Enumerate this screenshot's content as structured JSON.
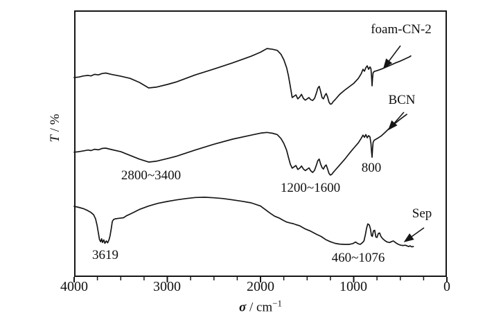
{
  "figure": {
    "background": "#ffffff",
    "line_color": "#161616"
  },
  "chart_data": {
    "type": "line",
    "title": "",
    "xlabel_symbol": "σ",
    "xlabel_unit": " / cm",
    "xlabel_sup": "−1",
    "ylabel_symbol": "T",
    "ylabel_unit": " / %",
    "x_axis": {
      "min": 0,
      "max": 4000,
      "reversed": true,
      "major_ticks": [
        4000,
        3000,
        2000,
        1000,
        0
      ],
      "minor_tick_step": 250,
      "tick_labels": [
        "4000",
        "3000",
        "2000",
        "1000",
        "0"
      ]
    },
    "y_axis": {
      "min": 0,
      "max": 100,
      "tick_labels": []
    },
    "grid": false,
    "legend_position": "none",
    "series": [
      {
        "name": "foam-CN-2",
        "points": [
          [
            4000,
            74.8
          ],
          [
            3950,
            75.0
          ],
          [
            3900,
            75.4
          ],
          [
            3850,
            75.6
          ],
          [
            3820,
            75.4
          ],
          [
            3780,
            76.0
          ],
          [
            3740,
            75.8
          ],
          [
            3700,
            76.3
          ],
          [
            3660,
            76.5
          ],
          [
            3600,
            76.0
          ],
          [
            3500,
            75.3
          ],
          [
            3400,
            74.5
          ],
          [
            3300,
            73.0
          ],
          [
            3200,
            70.9
          ],
          [
            3120,
            71.2
          ],
          [
            3000,
            72.2
          ],
          [
            2900,
            73.2
          ],
          [
            2700,
            75.8
          ],
          [
            2500,
            78.0
          ],
          [
            2300,
            80.3
          ],
          [
            2100,
            82.8
          ],
          [
            2000,
            84.3
          ],
          [
            1930,
            85.7
          ],
          [
            1870,
            85.4
          ],
          [
            1820,
            85.0
          ],
          [
            1780,
            83.5
          ],
          [
            1750,
            81.5
          ],
          [
            1720,
            78.5
          ],
          [
            1700,
            75.5
          ],
          [
            1680,
            71.5
          ],
          [
            1660,
            67.3
          ],
          [
            1640,
            67.8
          ],
          [
            1620,
            68.3
          ],
          [
            1600,
            66.8
          ],
          [
            1580,
            67.5
          ],
          [
            1560,
            68.5
          ],
          [
            1540,
            67.0
          ],
          [
            1520,
            66.3
          ],
          [
            1500,
            66.8
          ],
          [
            1480,
            67.3
          ],
          [
            1460,
            66.5
          ],
          [
            1440,
            66.2
          ],
          [
            1420,
            67.0
          ],
          [
            1400,
            69.0
          ],
          [
            1385,
            70.8
          ],
          [
            1370,
            71.5
          ],
          [
            1355,
            69.5
          ],
          [
            1340,
            67.3
          ],
          [
            1325,
            66.8
          ],
          [
            1310,
            68.0
          ],
          [
            1295,
            68.8
          ],
          [
            1280,
            67.5
          ],
          [
            1265,
            65.5
          ],
          [
            1250,
            64.8
          ],
          [
            1235,
            65.0
          ],
          [
            1220,
            65.8
          ],
          [
            1200,
            66.5
          ],
          [
            1150,
            68.5
          ],
          [
            1100,
            70.0
          ],
          [
            1050,
            71.3
          ],
          [
            1000,
            72.6
          ],
          [
            950,
            74.5
          ],
          [
            920,
            76.2
          ],
          [
            900,
            77.9
          ],
          [
            885,
            77.2
          ],
          [
            870,
            78.5
          ],
          [
            855,
            79.2
          ],
          [
            840,
            77.9
          ],
          [
            825,
            78.8
          ],
          [
            815,
            78.1
          ],
          [
            808,
            75.0
          ],
          [
            803,
            71.7
          ],
          [
            798,
            74.5
          ],
          [
            792,
            76.6
          ],
          [
            780,
            77.1
          ],
          [
            760,
            77.3
          ],
          [
            740,
            77.5
          ],
          [
            700,
            78.0
          ],
          [
            660,
            78.6
          ],
          [
            600,
            79.5
          ],
          [
            550,
            80.3
          ],
          [
            500,
            81.0
          ],
          [
            450,
            81.8
          ],
          [
            400,
            82.6
          ],
          [
            387,
            82.9
          ]
        ]
      },
      {
        "name": "BCN",
        "points": [
          [
            4000,
            46.8
          ],
          [
            3950,
            47.0
          ],
          [
            3900,
            47.3
          ],
          [
            3850,
            47.6
          ],
          [
            3820,
            47.4
          ],
          [
            3780,
            47.9
          ],
          [
            3740,
            47.7
          ],
          [
            3700,
            48.2
          ],
          [
            3660,
            48.3
          ],
          [
            3600,
            47.8
          ],
          [
            3500,
            47.0
          ],
          [
            3400,
            45.6
          ],
          [
            3300,
            44.2
          ],
          [
            3200,
            43.1
          ],
          [
            3120,
            43.4
          ],
          [
            3000,
            44.4
          ],
          [
            2900,
            45.3
          ],
          [
            2700,
            47.6
          ],
          [
            2500,
            49.8
          ],
          [
            2300,
            51.7
          ],
          [
            2100,
            53.2
          ],
          [
            1990,
            54.0
          ],
          [
            1930,
            54.2
          ],
          [
            1870,
            53.9
          ],
          [
            1820,
            53.4
          ],
          [
            1780,
            51.9
          ],
          [
            1750,
            50.1
          ],
          [
            1720,
            47.5
          ],
          [
            1700,
            44.9
          ],
          [
            1680,
            42.3
          ],
          [
            1660,
            40.8
          ],
          [
            1640,
            41.3
          ],
          [
            1620,
            41.8
          ],
          [
            1600,
            40.3
          ],
          [
            1580,
            40.8
          ],
          [
            1560,
            41.6
          ],
          [
            1540,
            40.5
          ],
          [
            1520,
            39.9
          ],
          [
            1500,
            40.4
          ],
          [
            1480,
            40.9
          ],
          [
            1460,
            39.8
          ],
          [
            1440,
            39.2
          ],
          [
            1420,
            40.0
          ],
          [
            1400,
            42.0
          ],
          [
            1385,
            43.6
          ],
          [
            1370,
            44.2
          ],
          [
            1355,
            42.3
          ],
          [
            1340,
            41.0
          ],
          [
            1325,
            40.5
          ],
          [
            1310,
            41.5
          ],
          [
            1295,
            42.0
          ],
          [
            1280,
            40.5
          ],
          [
            1265,
            38.8
          ],
          [
            1250,
            38.2
          ],
          [
            1235,
            38.5
          ],
          [
            1220,
            39.2
          ],
          [
            1200,
            40.0
          ],
          [
            1150,
            42.0
          ],
          [
            1100,
            44.0
          ],
          [
            1050,
            46.2
          ],
          [
            1000,
            48.3
          ],
          [
            950,
            50.3
          ],
          [
            920,
            52.0
          ],
          [
            900,
            53.2
          ],
          [
            885,
            52.4
          ],
          [
            870,
            53.4
          ],
          [
            855,
            52.2
          ],
          [
            840,
            53.0
          ],
          [
            825,
            52.5
          ],
          [
            815,
            50.0
          ],
          [
            808,
            46.8
          ],
          [
            803,
            44.9
          ],
          [
            798,
            48.0
          ],
          [
            792,
            50.5
          ],
          [
            780,
            51.3
          ],
          [
            760,
            51.7
          ],
          [
            740,
            52.1
          ],
          [
            700,
            53.0
          ],
          [
            660,
            54.3
          ],
          [
            620,
            55.7
          ],
          [
            560,
            57.5
          ],
          [
            500,
            59.2
          ],
          [
            450,
            60.5
          ],
          [
            431,
            61.0
          ]
        ]
      },
      {
        "name": "Sep",
        "points": [
          [
            4000,
            26.5
          ],
          [
            3950,
            26.1
          ],
          [
            3900,
            25.6
          ],
          [
            3860,
            25.0
          ],
          [
            3820,
            24.2
          ],
          [
            3790,
            23.3
          ],
          [
            3770,
            21.8
          ],
          [
            3755,
            19.5
          ],
          [
            3740,
            16.5
          ],
          [
            3728,
            14.0
          ],
          [
            3715,
            13.2
          ],
          [
            3705,
            14.3
          ],
          [
            3695,
            12.9
          ],
          [
            3682,
            13.9
          ],
          [
            3670,
            12.6
          ],
          [
            3655,
            13.5
          ],
          [
            3640,
            12.8
          ],
          [
            3625,
            14.0
          ],
          [
            3614,
            15.5
          ],
          [
            3600,
            18.5
          ],
          [
            3590,
            20.8
          ],
          [
            3578,
            21.5
          ],
          [
            3560,
            21.8
          ],
          [
            3520,
            22.0
          ],
          [
            3470,
            22.2
          ],
          [
            3440,
            22.9
          ],
          [
            3380,
            23.9
          ],
          [
            3300,
            25.3
          ],
          [
            3200,
            26.6
          ],
          [
            3100,
            27.6
          ],
          [
            3000,
            28.3
          ],
          [
            2900,
            28.9
          ],
          [
            2800,
            29.4
          ],
          [
            2700,
            29.8
          ],
          [
            2600,
            29.9
          ],
          [
            2500,
            29.7
          ],
          [
            2400,
            29.4
          ],
          [
            2300,
            28.9
          ],
          [
            2200,
            28.4
          ],
          [
            2100,
            27.8
          ],
          [
            2000,
            26.6
          ],
          [
            1950,
            25.3
          ],
          [
            1900,
            24.0
          ],
          [
            1850,
            22.8
          ],
          [
            1800,
            22.1
          ],
          [
            1760,
            21.3
          ],
          [
            1720,
            20.6
          ],
          [
            1680,
            20.2
          ],
          [
            1650,
            20.0
          ],
          [
            1620,
            19.6
          ],
          [
            1580,
            19.2
          ],
          [
            1520,
            18.0
          ],
          [
            1470,
            17.3
          ],
          [
            1400,
            16.0
          ],
          [
            1350,
            15.2
          ],
          [
            1300,
            14.0
          ],
          [
            1250,
            13.2
          ],
          [
            1200,
            12.6
          ],
          [
            1150,
            12.3
          ],
          [
            1100,
            12.2
          ],
          [
            1050,
            12.2
          ],
          [
            1010,
            12.5
          ],
          [
            980,
            13.1
          ],
          [
            955,
            12.5
          ],
          [
            930,
            12.2
          ],
          [
            905,
            12.9
          ],
          [
            890,
            13.5
          ],
          [
            875,
            15.8
          ],
          [
            862,
            18.3
          ],
          [
            848,
            19.9
          ],
          [
            833,
            19.5
          ],
          [
            820,
            18.0
          ],
          [
            810,
            15.5
          ],
          [
            800,
            15.2
          ],
          [
            788,
            17.3
          ],
          [
            775,
            17.5
          ],
          [
            762,
            15.0
          ],
          [
            750,
            14.8
          ],
          [
            735,
            16.3
          ],
          [
            722,
            16.5
          ],
          [
            708,
            15.2
          ],
          [
            690,
            14.4
          ],
          [
            665,
            13.6
          ],
          [
            640,
            13.1
          ],
          [
            615,
            12.9
          ],
          [
            590,
            13.3
          ],
          [
            575,
            13.5
          ],
          [
            560,
            13.1
          ],
          [
            540,
            12.6
          ],
          [
            520,
            12.2
          ],
          [
            495,
            11.9
          ],
          [
            470,
            11.8
          ],
          [
            445,
            11.9
          ],
          [
            425,
            11.6
          ],
          [
            410,
            11.4
          ],
          [
            395,
            11.7
          ],
          [
            380,
            11.3
          ],
          [
            360,
            11.4
          ]
        ]
      }
    ],
    "annotations": [
      {
        "text": "foam-CN-2"
      },
      {
        "text": "BCN"
      },
      {
        "text": "Sep"
      },
      {
        "text": "2800~3400"
      },
      {
        "text": "1200~1600"
      },
      {
        "text": "800"
      },
      {
        "text": "3619"
      },
      {
        "text": "460~1076"
      }
    ]
  }
}
